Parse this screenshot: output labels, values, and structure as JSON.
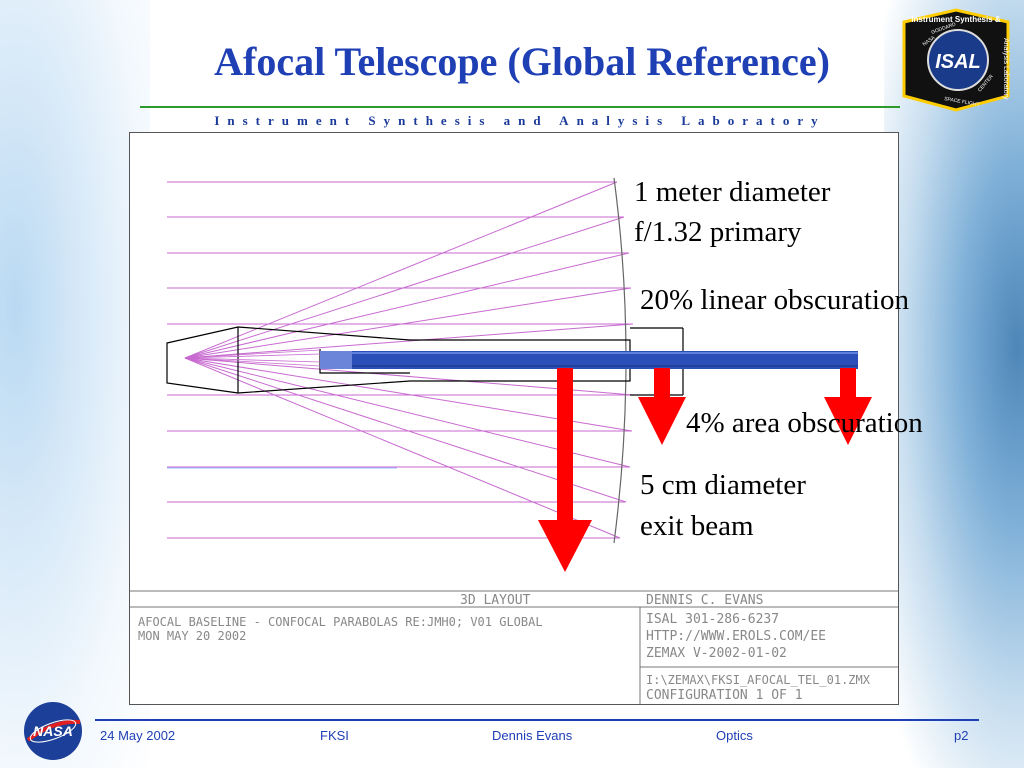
{
  "slide": {
    "title": "Afocal Telescope (Global Reference)",
    "subtitle": "Instrument Synthesis and Analysis Laboratory"
  },
  "badge": {
    "top_text": "Instrument Synthesis &",
    "side_text": "Analysis Laboratory",
    "center_text": "ISAL",
    "ring_left": "NASA",
    "ring_mid": "GODDARD",
    "ring_bottom": "SPACE FLIGHT",
    "ring_right": "CENTER"
  },
  "annotations": {
    "primary_line1": "1 meter diameter",
    "primary_line2": "f/1.32 primary",
    "linear_obscuration": "20% linear obscuration",
    "area_obscuration": "4% area obscuration",
    "exit_line1": "5  cm diameter",
    "exit_line2": "exit beam"
  },
  "zemax_box": {
    "layout_title": "3D LAYOUT",
    "description_line1": "AFOCAL BASELINE - CONFOCAL PARABOLAS RE:JMH0; V01 GLOBAL",
    "description_line2": "MON MAY 20 2002",
    "author": "DENNIS C. EVANS",
    "phone": "ISAL 301-286-6237",
    "url": "HTTP://WWW.EROLS.COM/EE",
    "version": "ZEMAX V-2002-01-02",
    "file": "I:\\ZEMAX\\FKSI_AFOCAL_TEL_01.ZMX",
    "configuration": "CONFIGURATION  1  OF  1"
  },
  "footer": {
    "date": "24 May 2002",
    "project": "FKSI",
    "author": "Dennis Evans",
    "topic": "Optics",
    "page": "p2"
  },
  "logo": {
    "text": "NASA"
  },
  "colors": {
    "title": "#1f3fb5",
    "rays": "#c86ad0",
    "beam": "#2a4fb8",
    "arrow": "#ff0000",
    "rule_top": "#2b9a2b"
  }
}
